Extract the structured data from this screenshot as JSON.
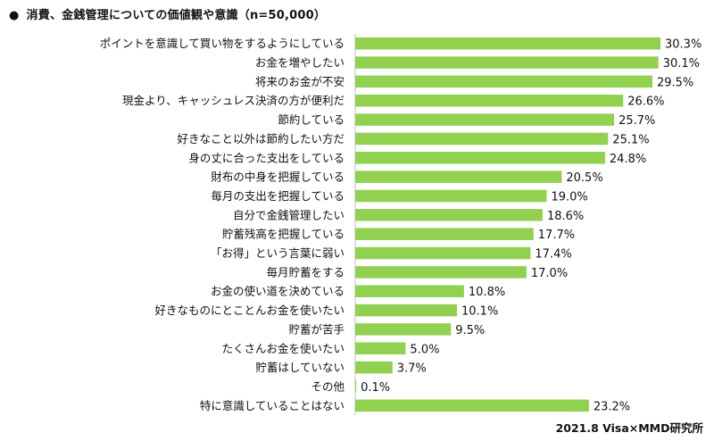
{
  "header": {
    "bullet": "●",
    "title": "消費、金銭管理についての価値観や意識（n=50,000）"
  },
  "source": "2021.8 Visa×MMD研究所",
  "colors": {
    "bar": "#92d050",
    "text": "#111111",
    "axis": "#bfbfbf"
  },
  "chart_data": {
    "type": "bar",
    "orientation": "horizontal",
    "title": "消費、金銭管理についての価値観や意識（n=50,000）",
    "value_suffix": "%",
    "categories": [
      "ポイントを意識して買い物をするようにしている",
      "お金を増やしたい",
      "将来のお金が不安",
      "現金より、キャッシュレス決済の方が便利だ",
      "節約している",
      "好きなこと以外は節約したい方だ",
      "身の丈に合った支出をしている",
      "財布の中身を把握している",
      "毎月の支出を把握している",
      "自分で金銭管理したい",
      "貯蓄残高を把握している",
      "「お得」という言葉に弱い",
      "毎月貯蓄をする",
      "お金の使い道を決めている",
      "好きなものにとことんお金を使いたい",
      "貯蓄が苦手",
      "たくさんお金を使いたい",
      "貯蓄はしていない",
      "その他",
      "特に意識していることはない"
    ],
    "values": [
      30.3,
      30.1,
      29.5,
      26.6,
      25.7,
      25.1,
      24.8,
      20.5,
      19.0,
      18.6,
      17.7,
      17.4,
      17.0,
      10.8,
      10.1,
      9.5,
      5.0,
      3.7,
      0.1,
      23.2
    ],
    "xlim": [
      0,
      30.3
    ],
    "grid": false,
    "legend": "none"
  }
}
